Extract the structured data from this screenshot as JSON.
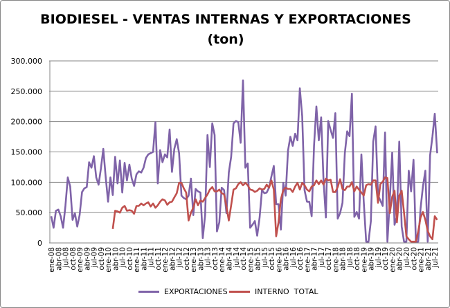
{
  "chart_data": {
    "type": "line",
    "title": "BIODIESEL - VENTAS INTERNAS Y EXPORTACIONES",
    "subtitle": "(ton)",
    "xlabel": "",
    "ylabel": "",
    "ylim": [
      0,
      300000
    ],
    "y_ticks": [
      "0",
      "50.000",
      "100.000",
      "150.000",
      "200.000",
      "250.000",
      "300.000"
    ],
    "y_tick_values": [
      0,
      50000,
      100000,
      150000,
      200000,
      250000,
      300000
    ],
    "grid": true,
    "legend_position": "bottom",
    "x_frequency": "monthly",
    "x_start": "ene-08",
    "x_tick_labels": [
      "ene-08",
      "abr-08",
      "jul-08",
      "oct-08",
      "ene-09",
      "abr-09",
      "jul-09",
      "oct-09",
      "ene-10",
      "abr-10",
      "jul-10",
      "oct-10",
      "ene-11",
      "abr-11",
      "jul-11",
      "oct-11",
      "ene-12",
      "abr-12",
      "jul-12",
      "oct-12",
      "ene-13",
      "abr-13",
      "jul-13",
      "oct-13",
      "ene-14",
      "abr-14",
      "jul-14",
      "oct-14",
      "ene-15",
      "abr-15",
      "jul-15",
      "oct-15",
      "ene-16",
      "abr-16",
      "jul-16",
      "oct-16",
      "ene-17",
      "abr-17",
      "jul-17",
      "oct-17",
      "ene-18",
      "abr-18",
      "jul-18",
      "oct-18",
      "ene-19",
      "abr-19",
      "jul-19",
      "oct-19",
      "ene-20",
      "abr-20",
      "jul-20",
      "oct-20",
      "ene-21",
      "abr-21",
      "jul-21"
    ],
    "series": [
      {
        "name": "EXPORTACIONES",
        "color": "#7f63a8",
        "start_index": 0,
        "values": [
          44000,
          25000,
          53000,
          55000,
          44000,
          25000,
          61000,
          108000,
          93000,
          38000,
          49000,
          27000,
          46000,
          84000,
          90000,
          92000,
          133000,
          124000,
          143000,
          108000,
          96000,
          123000,
          155000,
          108000,
          68000,
          108000,
          79000,
          142000,
          98000,
          136000,
          83000,
          132000,
          103000,
          129000,
          106000,
          94000,
          113000,
          118000,
          116000,
          124000,
          140000,
          146000,
          148000,
          150000,
          199000,
          98000,
          153000,
          133000,
          146000,
          141000,
          187000,
          117000,
          155000,
          171000,
          148000,
          78000,
          74000,
          72000,
          78000,
          106000,
          46000,
          89000,
          85000,
          83000,
          8000,
          46000,
          178000,
          125000,
          197000,
          178000,
          19000,
          34000,
          91000,
          87000,
          49000,
          116000,
          142000,
          197000,
          201000,
          199000,
          165000,
          268000,
          124000,
          131000,
          25000,
          30000,
          36000,
          12000,
          42000,
          87000,
          82000,
          83000,
          91000,
          110000,
          127000,
          64000,
          64000,
          22000,
          99000,
          78000,
          152000,
          175000,
          160000,
          180000,
          169000,
          255000,
          209000,
          87000,
          68000,
          68000,
          44000,
          160000,
          225000,
          169000,
          207000,
          103000,
          42000,
          201000,
          186000,
          173000,
          214000,
          40000,
          49000,
          66000,
          148000,
          184000,
          176000,
          246000,
          43000,
          51000,
          40000,
          146000,
          68000,
          2000,
          2000,
          36000,
          167000,
          192000,
          78000,
          70000,
          61000,
          182000,
          2000,
          72000,
          149000,
          30000,
          44000,
          167000,
          27000,
          2000,
          2000,
          119000,
          85000,
          137000,
          2000,
          2000,
          57000,
          93000,
          119000,
          2000,
          144000,
          175000,
          213000,
          148000
        ]
      },
      {
        "name": "INTERNO  TOTAL",
        "color": "#c0504d",
        "start_index": 26,
        "values": [
          23000,
          53000,
          52000,
          50000,
          58000,
          61000,
          53000,
          54000,
          53000,
          48000,
          61000,
          61000,
          65000,
          62000,
          65000,
          67000,
          60000,
          65000,
          58000,
          62000,
          68000,
          72000,
          70000,
          63000,
          67000,
          68000,
          75000,
          82000,
          99000,
          99000,
          90000,
          83000,
          37000,
          50000,
          58000,
          72000,
          62000,
          70000,
          68000,
          74000,
          80000,
          88000,
          92000,
          85000,
          85000,
          88000,
          82000,
          80000,
          60000,
          37000,
          62000,
          88000,
          90000,
          97000,
          100000,
          95000,
          99000,
          95000,
          88000,
          87000,
          84000,
          86000,
          90000,
          88000,
          89000,
          96000,
          91000,
          103000,
          88000,
          11000,
          34000,
          72000,
          87000,
          91000,
          89000,
          89000,
          84000,
          93000,
          99000,
          88000,
          99000,
          95000,
          88000,
          85000,
          93000,
          95000,
          103000,
          97000,
          103000,
          96000,
          106000,
          103000,
          104000,
          84000,
          84000,
          92000,
          105000,
          89000,
          87000,
          93000,
          93000,
          100000,
          85000,
          93000,
          88000,
          83000,
          78000,
          95000,
          97000,
          96000,
          103000,
          103000,
          66000,
          97000,
          101000,
          108000,
          107000,
          49000,
          76000,
          86000,
          34000,
          78000,
          86000,
          50000,
          11000,
          6000,
          2000,
          2000,
          2000,
          19000,
          42000,
          51000,
          38000,
          20000,
          11000,
          6000,
          44000,
          38000
        ]
      }
    ]
  }
}
